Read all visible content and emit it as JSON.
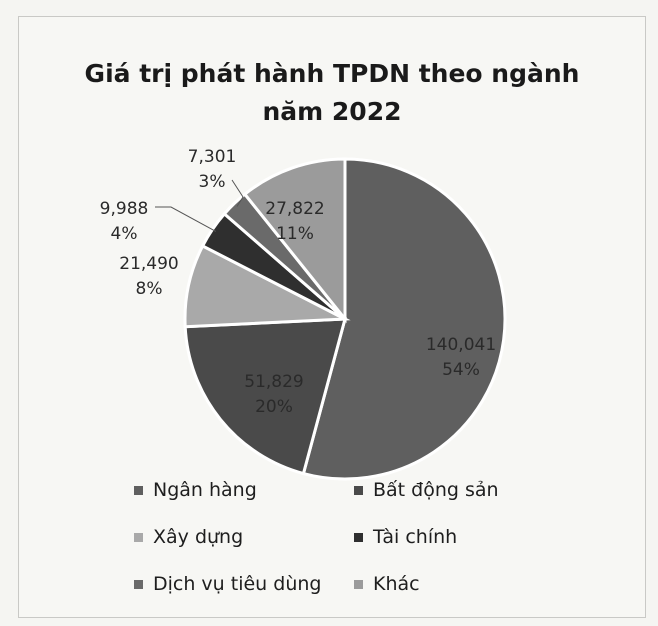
{
  "chart_data": {
    "type": "pie",
    "title_line1": "Giá trị phát hành TPDN theo ngành",
    "title_line2": "năm 2022",
    "slices": [
      {
        "name": "Ngân hàng",
        "value": 140041,
        "value_label": "140,041",
        "pct_label": "54%",
        "color": "#5f5f5f"
      },
      {
        "name": "Bất động sản",
        "value": 51829,
        "value_label": "51,829",
        "pct_label": "20%",
        "color": "#4a4a4a"
      },
      {
        "name": "Xây dựng",
        "value": 21490,
        "value_label": "21,490",
        "pct_label": "8%",
        "color": "#a9a9a9"
      },
      {
        "name": "Tài chính",
        "value": 9988,
        "value_label": "9,988",
        "pct_label": "4%",
        "color": "#2f2f2f"
      },
      {
        "name": "Dịch vụ tiêu dùng",
        "value": 7301,
        "value_label": "7,301",
        "pct_label": "3%",
        "color": "#6a6a6a"
      },
      {
        "name": "Khác",
        "value": 27822,
        "value_label": "27,822",
        "pct_label": "11%",
        "color": "#9b9b9b"
      }
    ],
    "legend": "bottom"
  }
}
